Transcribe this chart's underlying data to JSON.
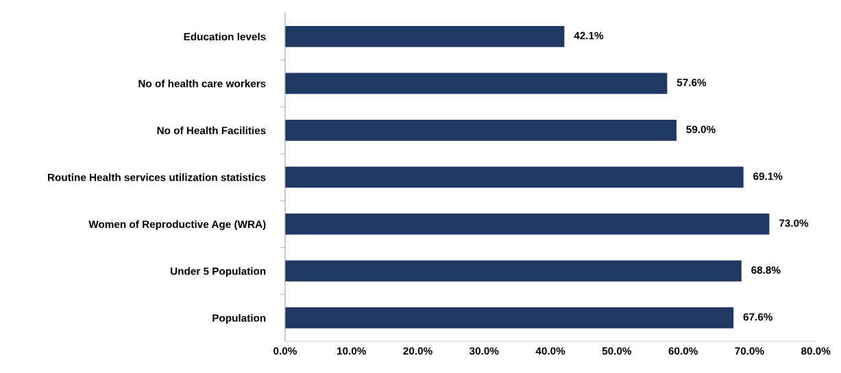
{
  "chart_data": {
    "type": "bar",
    "orientation": "horizontal",
    "categories": [
      "Education levels",
      "No of health care workers",
      "No of Health Facilities",
      "Routine Health services utilization statistics",
      "Women of Reproductive Age (WRA)",
      "Under 5 Population",
      "Population"
    ],
    "values": [
      42.1,
      57.6,
      59.0,
      69.1,
      73.0,
      68.8,
      67.6
    ],
    "value_labels": [
      "42.1%",
      "57.6%",
      "59.0%",
      "69.1%",
      "73.0%",
      "68.8%",
      "67.6%"
    ],
    "color": "#1f3864",
    "xlim": [
      0,
      80
    ],
    "xticks": [
      {
        "value": 0,
        "label": "0.0%"
      },
      {
        "value": 10,
        "label": "10.0%"
      },
      {
        "value": 20,
        "label": "20.0%"
      },
      {
        "value": 30,
        "label": "30.0%"
      },
      {
        "value": 40,
        "label": "40.0%"
      },
      {
        "value": 50,
        "label": "50.0%"
      },
      {
        "value": 60,
        "label": "60.0%"
      },
      {
        "value": 70,
        "label": "70.0%"
      },
      {
        "value": 80,
        "label": "80.0%"
      }
    ],
    "grid": false,
    "legend": false
  }
}
